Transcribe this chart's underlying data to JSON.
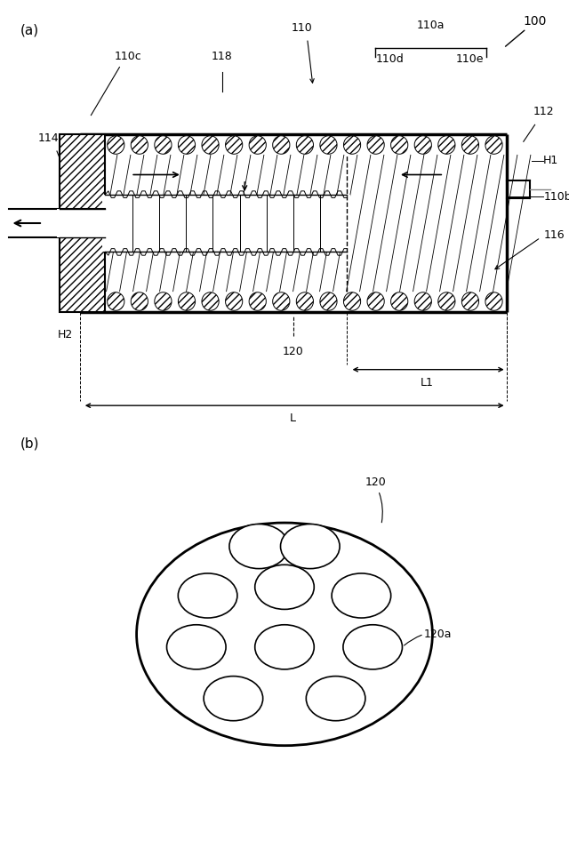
{
  "bg_color": "#ffffff",
  "line_color": "#000000",
  "fig_width": 6.4,
  "fig_height": 9.64,
  "label_a": "(a)",
  "label_b": "(b)",
  "label_100": "100",
  "label_110": "110",
  "label_110a": "110a",
  "label_110b": "110b",
  "label_110c": "110c",
  "label_110d": "110d",
  "label_110e": "110e",
  "label_112": "112",
  "label_114": "114",
  "label_116": "116",
  "label_118": "118",
  "label_120": "120",
  "label_120a": "120a",
  "label_H1": "H1",
  "label_H2": "H2",
  "label_L": "L",
  "label_L1": "L1"
}
